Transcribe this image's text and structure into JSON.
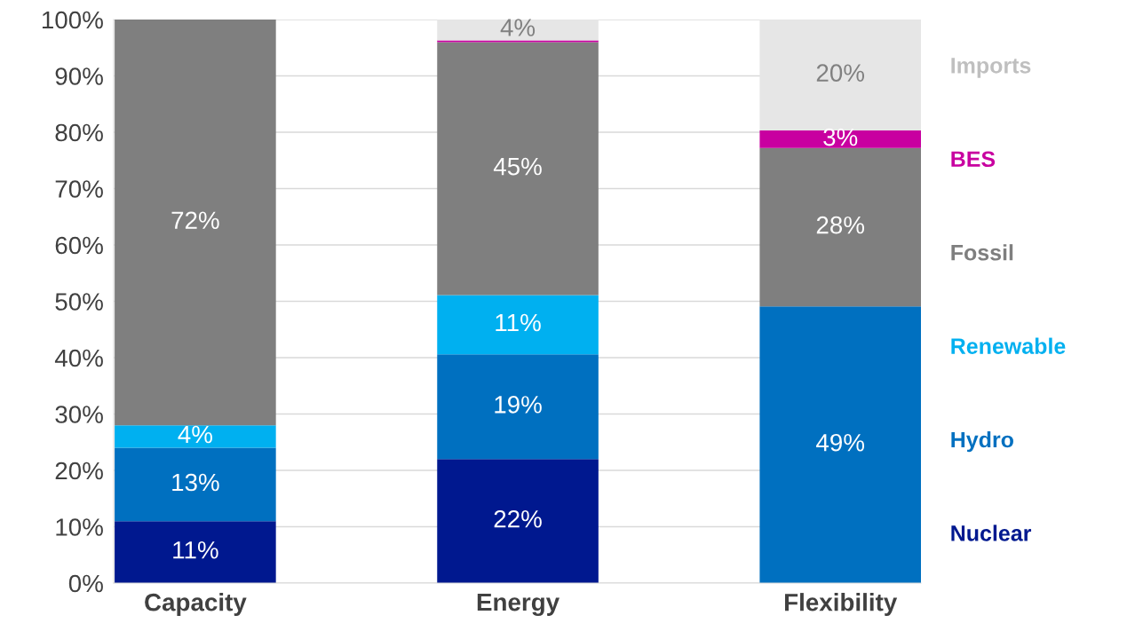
{
  "chart_data": {
    "type": "bar",
    "stacked": true,
    "categories": [
      "Capacity",
      "Energy",
      "Flexibility"
    ],
    "series": [
      {
        "name": "Nuclear",
        "color": "#00188f",
        "values": [
          11,
          22,
          null
        ],
        "value_labels": [
          "11%",
          "22%",
          null
        ]
      },
      {
        "name": "Hydro",
        "color": "#0070c0",
        "values": [
          13,
          18.6,
          49.1
        ],
        "value_labels": [
          "13%",
          "19%",
          "49%"
        ]
      },
      {
        "name": "Renewable",
        "color": "#00b0f0",
        "values": [
          4,
          10.5,
          null
        ],
        "value_labels": [
          "4%",
          "11%",
          null
        ]
      },
      {
        "name": "Fossil",
        "color": "#7f7f7f",
        "values": [
          72,
          44.9,
          28.1
        ],
        "value_labels": [
          "72%",
          "45%",
          "28%"
        ]
      },
      {
        "name": "BES",
        "color": "#c800a0",
        "values": [
          null,
          0.3,
          3.1
        ],
        "value_labels": [
          null,
          null,
          "3%"
        ]
      },
      {
        "name": "Imports",
        "color": "#e6e6e6",
        "values": [
          null,
          3.8,
          19.7
        ],
        "value_labels": [
          null,
          "4%",
          "20%"
        ]
      }
    ],
    "ylim": [
      0,
      100
    ],
    "yticks": [
      {
        "value": 0,
        "label": "0%"
      },
      {
        "value": 10,
        "label": "10%"
      },
      {
        "value": 20,
        "label": "20%"
      },
      {
        "value": 30,
        "label": "30%"
      },
      {
        "value": 40,
        "label": "40%"
      },
      {
        "value": 50,
        "label": "50%"
      },
      {
        "value": 60,
        "label": "60%"
      },
      {
        "value": 70,
        "label": "70%"
      },
      {
        "value": 80,
        "label": "80%"
      },
      {
        "value": 90,
        "label": "90%"
      },
      {
        "value": 100,
        "label": "100%"
      }
    ],
    "grid": "y",
    "legend": "right"
  }
}
